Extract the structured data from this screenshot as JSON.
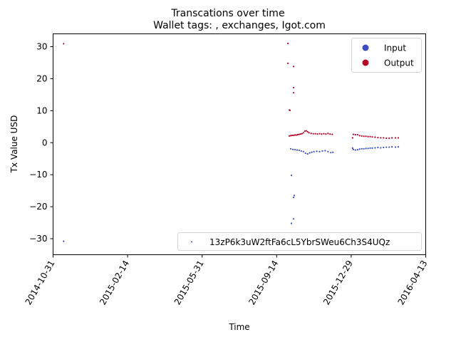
{
  "chart_data": {
    "type": "scatter",
    "title": "Transcations over time",
    "subtitle": "Wallet tags: , exchanges, Igot.com",
    "xlabel": "Time",
    "ylabel": "Tx Value USD",
    "xlim": [
      "2014-10-31",
      "2016-04-13"
    ],
    "ylim": [
      -35,
      34
    ],
    "x_ticks": [
      "2014-10-31",
      "2015-02-14",
      "2015-05-31",
      "2015-09-14",
      "2015-12-29",
      "2016-04-13"
    ],
    "y_ticks": [
      -30,
      -20,
      -10,
      0,
      10,
      20,
      30
    ],
    "grid": false,
    "colors": {
      "input": "#3b4cc0",
      "output": "#b40426",
      "address": "#3b4cc0"
    },
    "legend_upper": {
      "placement": "top-right",
      "entries": [
        "Input",
        "Output"
      ]
    },
    "legend_lower": {
      "placement": "bottom-right",
      "entries": [
        "13zP6k3uW2ftFa6cL5YbrSWeu6Ch3S4UQz"
      ]
    },
    "series": [
      {
        "name": "Input",
        "points": [
          [
            "2014-11-15",
            -30.8
          ],
          [
            "2015-10-05",
            -25.2
          ],
          [
            "2015-10-05",
            -10.2
          ],
          [
            "2015-10-08",
            -23.8
          ],
          [
            "2015-10-08",
            -17.1
          ],
          [
            "2015-10-09",
            -16.5
          ],
          [
            "2015-10-04",
            -1.9
          ],
          [
            "2015-10-07",
            -2.1
          ],
          [
            "2015-10-10",
            -2.2
          ],
          [
            "2015-10-13",
            -2.3
          ],
          [
            "2015-10-16",
            -2.4
          ],
          [
            "2015-10-19",
            -2.6
          ],
          [
            "2015-10-22",
            -2.8
          ],
          [
            "2015-10-25",
            -3.3
          ],
          [
            "2015-10-28",
            -3.5
          ],
          [
            "2015-10-31",
            -3.2
          ],
          [
            "2015-11-03",
            -3.0
          ],
          [
            "2015-11-06",
            -2.8
          ],
          [
            "2015-11-10",
            -2.7
          ],
          [
            "2015-11-14",
            -2.8
          ],
          [
            "2015-11-18",
            -2.6
          ],
          [
            "2015-11-22",
            -2.5
          ],
          [
            "2015-11-26",
            -2.8
          ],
          [
            "2015-11-30",
            -3.1
          ],
          [
            "2015-12-03",
            -3.0
          ],
          [
            "2015-12-31",
            -1.7
          ],
          [
            "2016-01-01",
            -2.1
          ],
          [
            "2016-01-04",
            -2.3
          ],
          [
            "2016-01-07",
            -2.2
          ],
          [
            "2016-01-10",
            -2.0
          ],
          [
            "2016-01-13",
            -1.9
          ],
          [
            "2016-01-16",
            -1.9
          ],
          [
            "2016-01-19",
            -1.8
          ],
          [
            "2016-01-22",
            -1.8
          ],
          [
            "2016-01-25",
            -1.7
          ],
          [
            "2016-01-28",
            -1.7
          ],
          [
            "2016-02-01",
            -1.6
          ],
          [
            "2016-02-05",
            -1.5
          ],
          [
            "2016-02-09",
            -1.6
          ],
          [
            "2016-02-13",
            -1.5
          ],
          [
            "2016-02-17",
            -1.4
          ],
          [
            "2016-02-21",
            -1.4
          ],
          [
            "2016-02-25",
            -1.3
          ],
          [
            "2016-03-01",
            -1.4
          ],
          [
            "2016-03-05",
            -1.3
          ]
        ]
      },
      {
        "name": "Output",
        "points": [
          [
            "2014-11-15",
            30.9
          ],
          [
            "2015-09-30",
            31.0
          ],
          [
            "2015-09-30",
            24.8
          ],
          [
            "2015-10-02",
            10.2
          ],
          [
            "2015-10-03",
            10.1
          ],
          [
            "2015-10-08",
            23.8
          ],
          [
            "2015-10-08",
            17.2
          ],
          [
            "2015-10-08",
            15.6
          ],
          [
            "2015-10-02",
            2.1
          ],
          [
            "2015-10-04",
            2.2
          ],
          [
            "2015-10-06",
            2.3
          ],
          [
            "2015-10-08",
            2.3
          ],
          [
            "2015-10-10",
            2.4
          ],
          [
            "2015-10-12",
            2.4
          ],
          [
            "2015-10-14",
            2.5
          ],
          [
            "2015-10-16",
            2.6
          ],
          [
            "2015-10-18",
            2.7
          ],
          [
            "2015-10-20",
            2.8
          ],
          [
            "2015-10-22",
            3.1
          ],
          [
            "2015-10-24",
            3.6
          ],
          [
            "2015-10-26",
            3.7
          ],
          [
            "2015-10-28",
            3.4
          ],
          [
            "2015-10-30",
            3.1
          ],
          [
            "2015-11-02",
            2.9
          ],
          [
            "2015-11-05",
            2.8
          ],
          [
            "2015-11-08",
            2.8
          ],
          [
            "2015-11-11",
            2.7
          ],
          [
            "2015-11-14",
            2.8
          ],
          [
            "2015-11-17",
            2.7
          ],
          [
            "2015-11-20",
            2.8
          ],
          [
            "2015-11-23",
            2.7
          ],
          [
            "2015-11-26",
            2.9
          ],
          [
            "2015-11-29",
            2.7
          ],
          [
            "2015-12-02",
            2.6
          ],
          [
            "2015-12-31",
            1.5
          ],
          [
            "2016-01-01",
            2.6
          ],
          [
            "2016-01-04",
            2.5
          ],
          [
            "2016-01-07",
            2.5
          ],
          [
            "2016-01-10",
            2.2
          ],
          [
            "2016-01-13",
            2.1
          ],
          [
            "2016-01-16",
            2.0
          ],
          [
            "2016-01-19",
            2.0
          ],
          [
            "2016-01-22",
            1.9
          ],
          [
            "2016-01-25",
            1.9
          ],
          [
            "2016-01-28",
            1.8
          ],
          [
            "2016-02-01",
            1.7
          ],
          [
            "2016-02-05",
            1.6
          ],
          [
            "2016-02-09",
            1.5
          ],
          [
            "2016-02-13",
            1.5
          ],
          [
            "2016-02-17",
            1.4
          ],
          [
            "2016-02-21",
            1.4
          ],
          [
            "2016-02-25",
            1.5
          ],
          [
            "2016-03-01",
            1.5
          ],
          [
            "2016-03-05",
            1.5
          ]
        ]
      }
    ]
  }
}
